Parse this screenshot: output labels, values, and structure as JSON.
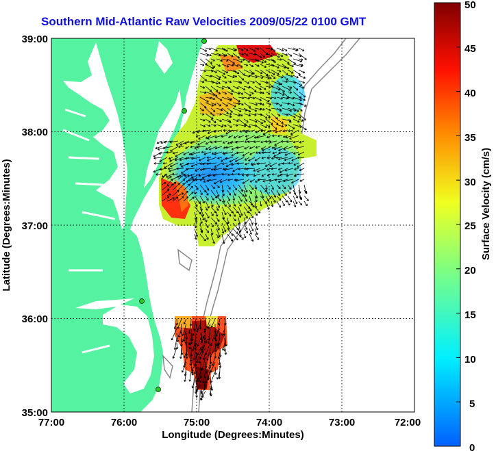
{
  "title": "Southern Mid-Atlantic Raw Velocities 2009/05/22 0100 GMT",
  "x_axis": {
    "label": "Longitude (Degrees:Minutes)",
    "ticks": [
      "77:00",
      "76:00",
      "75:00",
      "74:00",
      "73:00",
      "72:00"
    ]
  },
  "y_axis": {
    "label": "Latitude (Degrees:Minutes)",
    "ticks": [
      "39:00",
      "38:00",
      "37:00",
      "36:00",
      "35:00"
    ]
  },
  "colorbar": {
    "label": "Surface Velocity (cm/s)",
    "ticks": [
      "50",
      "45",
      "40",
      "35",
      "30",
      "25",
      "20",
      "15",
      "10",
      "5",
      "0"
    ]
  },
  "colors": {
    "land": "#55f2a2",
    "coast_dots": "#22cc22",
    "bathymetry": "#888888"
  }
}
